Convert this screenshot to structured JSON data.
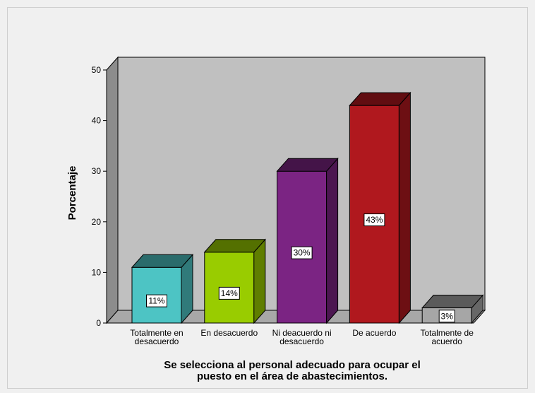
{
  "chart_data": {
    "type": "bar",
    "categories": [
      [
        "Totalmente en",
        "desacuerdo"
      ],
      [
        "En desacuerdo"
      ],
      [
        "Ni deacuerdo ni",
        "desacuerdo"
      ],
      [
        "De acuerdo"
      ],
      [
        "Totalmente de",
        "acuerdo"
      ]
    ],
    "values": [
      11,
      14,
      30,
      43,
      3
    ],
    "data_labels": [
      "11%",
      "14%",
      "30%",
      "43%",
      "3%"
    ],
    "colors": [
      "#4dc4c4",
      "#99cc00",
      "#7b2483",
      "#b0181e",
      "#a6a6a6"
    ],
    "ylabel": "Porcentaje",
    "xlabel": [
      "Se selecciona  al personal adecuado para ocupar el",
      "puesto en el área de abastecimientos."
    ],
    "ylim": [
      0,
      50
    ],
    "yticks": [
      0,
      10,
      20,
      30,
      40,
      50
    ],
    "grid": false,
    "style": "3d",
    "wall_color": "#c0c0c0",
    "floor_color": "#a8a8a8",
    "side_wall_color": "#8c8c8c"
  }
}
